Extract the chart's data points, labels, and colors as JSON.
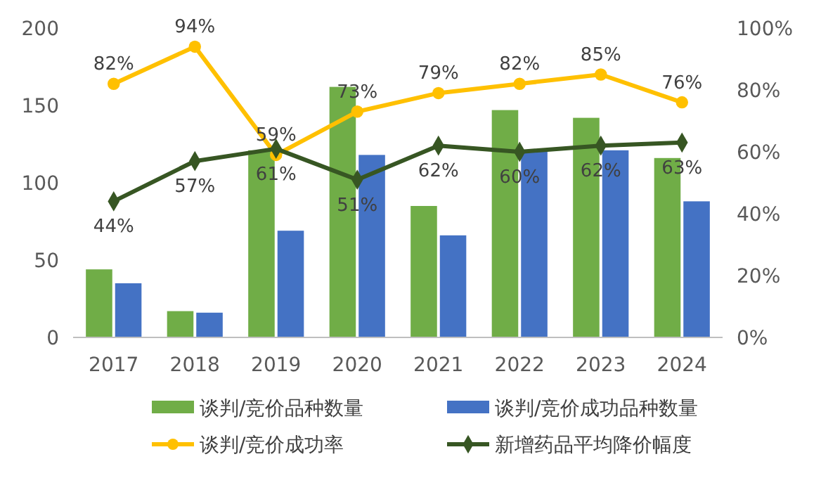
{
  "chart_data": {
    "type": "bar",
    "categories": [
      "2017",
      "2018",
      "2019",
      "2020",
      "2021",
      "2022",
      "2023",
      "2024"
    ],
    "series": [
      {
        "name": "谈判/竞价品种数量",
        "color": "#70ad47",
        "values": [
          44,
          17,
          121,
          162,
          85,
          147,
          142,
          116
        ]
      },
      {
        "name": "谈判/竞价成功品种数量",
        "color": "#4472c4",
        "values": [
          35,
          16,
          69,
          118,
          66,
          121,
          121,
          88
        ]
      },
      {
        "name": "谈判/竞价成功率",
        "type": "line",
        "axis": "y2",
        "color": "#ffc000",
        "marker": "circle",
        "values": [
          82,
          94,
          59,
          73,
          79,
          82,
          85,
          76
        ],
        "value_labels": [
          "82%",
          "94%",
          "59%",
          "73%",
          "79%",
          "82%",
          "85%",
          "76%"
        ]
      },
      {
        "name": "新增药品平均降价幅度",
        "type": "line",
        "axis": "y2",
        "color": "#375623",
        "marker": "diamond",
        "values": [
          44,
          57,
          61,
          51,
          62,
          60,
          62,
          63
        ],
        "value_labels": [
          "44%",
          "57%",
          "61%",
          "51%",
          "62%",
          "60%",
          "62%",
          "63%"
        ]
      }
    ],
    "ylim": [
      0,
      200
    ],
    "yticks": [
      0,
      50,
      100,
      150,
      200
    ],
    "y2lim": [
      0,
      100
    ],
    "y2ticks": [
      {
        "value": 0,
        "label": "0%"
      },
      {
        "value": 20,
        "label": "20%"
      },
      {
        "value": 40,
        "label": "40%"
      },
      {
        "value": 60,
        "label": "60%"
      },
      {
        "value": 80,
        "label": "80%"
      },
      {
        "value": 100,
        "label": "100%"
      }
    ],
    "grid": false,
    "legend": "bottom"
  }
}
